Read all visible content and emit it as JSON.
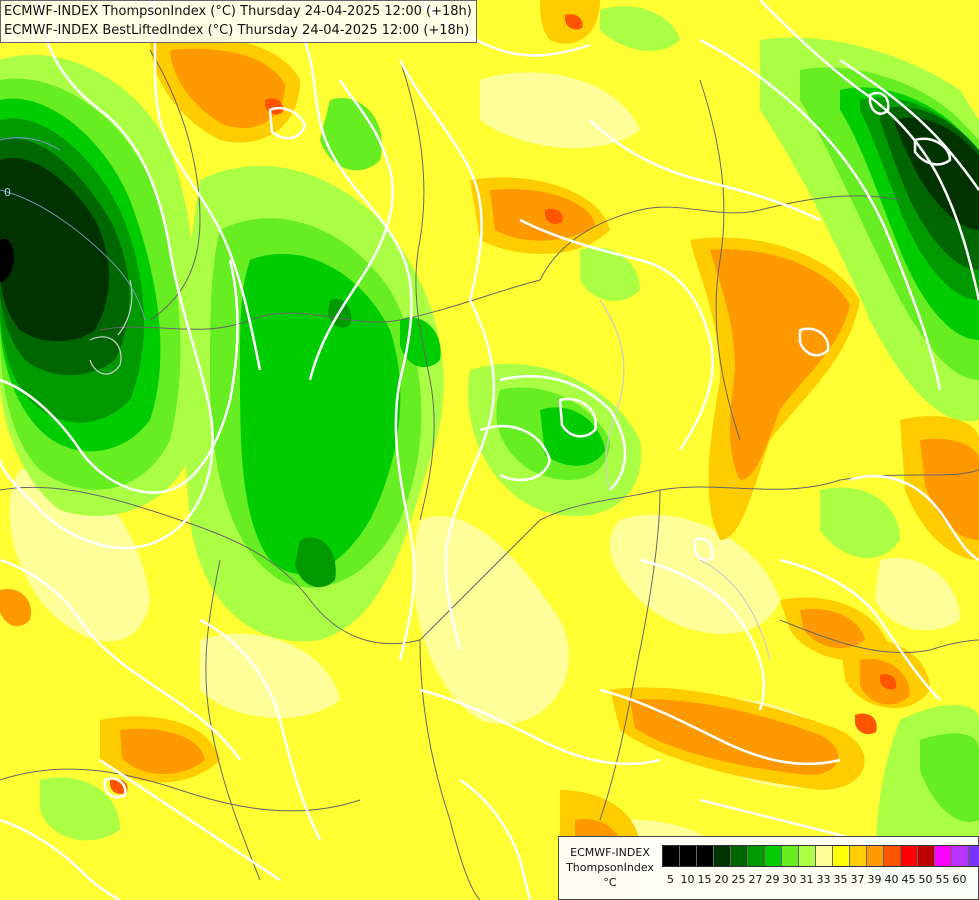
{
  "header": {
    "line1": "ECMWF-INDEX ThompsonIndex (°C) Thursday 24-04-2025 12:00 (+18h)",
    "line2": "ECMWF-INDEX BestLiftedIndex (°C) Thursday 24-04-2025 12:00 (+18h)"
  },
  "legend": {
    "model": "ECMWF-INDEX",
    "field": "ThompsonIndex",
    "unit": "°C",
    "swatches": [
      {
        "value": "5",
        "color": "#000000"
      },
      {
        "value": "10",
        "color": "#000000"
      },
      {
        "value": "15",
        "color": "#000000"
      },
      {
        "value": "20",
        "color": "#003300"
      },
      {
        "value": "25",
        "color": "#006600"
      },
      {
        "value": "27",
        "color": "#009900"
      },
      {
        "value": "29",
        "color": "#00cc00"
      },
      {
        "value": "30",
        "color": "#66ee22"
      },
      {
        "value": "31",
        "color": "#aaff44"
      },
      {
        "value": "33",
        "color": "#ffff99"
      },
      {
        "value": "35",
        "color": "#ffff00"
      },
      {
        "value": "37",
        "color": "#ffcc00"
      },
      {
        "value": "39",
        "color": "#ff9900"
      },
      {
        "value": "40",
        "color": "#ff5500"
      },
      {
        "value": "45",
        "color": "#ff0000"
      },
      {
        "value": "50",
        "color": "#bb0000"
      },
      {
        "value": "55",
        "color": "#ff00ff"
      },
      {
        "value": "60",
        "color": "#bb33ff"
      },
      {
        "value": "",
        "color": "#7733ff"
      },
      {
        "value": "",
        "color": "#0000ff"
      }
    ]
  },
  "map": {
    "contour_label": "0",
    "colors": {
      "background": "#ffff33",
      "yellow_light": "#ffff99",
      "orange_light": "#ffcc00",
      "orange": "#ff9900",
      "red_orange": "#ff5500",
      "lime": "#aaff44",
      "green_light": "#66ee22",
      "green": "#00cc00",
      "green_mid": "#009900",
      "green_dark": "#006600",
      "green_darkest": "#003300",
      "black": "#000000",
      "contour": "#ffffff",
      "border": "#666666"
    }
  }
}
